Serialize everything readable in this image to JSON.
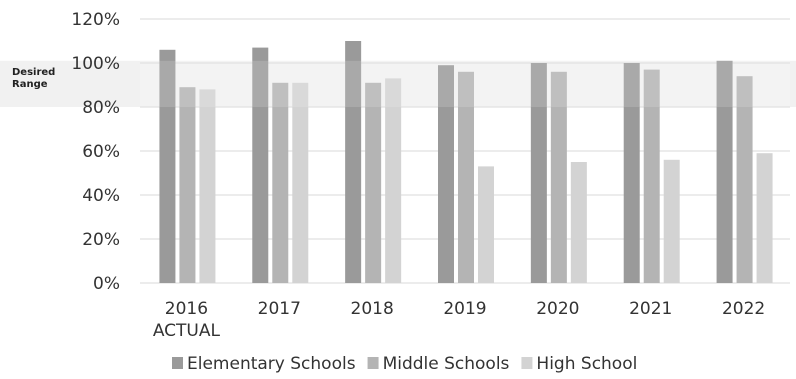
{
  "chart_data": {
    "type": "bar",
    "categories": [
      "2016 ACTUAL",
      "2017",
      "2018",
      "2019",
      "2020",
      "2021",
      "2022"
    ],
    "category_lines": [
      [
        "2016",
        "ACTUAL"
      ],
      [
        "2017"
      ],
      [
        "2018"
      ],
      [
        "2019"
      ],
      [
        "2020"
      ],
      [
        "2021"
      ],
      [
        "2022"
      ]
    ],
    "series": [
      {
        "name": "Elementary Schools",
        "color": "#9a9a9a",
        "values": [
          106,
          107,
          110,
          99,
          100,
          100,
          101
        ]
      },
      {
        "name": "Middle Schools",
        "color": "#b4b4b4",
        "values": [
          89,
          91,
          91,
          96,
          96,
          97,
          94
        ]
      },
      {
        "name": "High School",
        "color": "#d3d3d3",
        "values": [
          88,
          91,
          93,
          53,
          55,
          56,
          59
        ]
      }
    ],
    "y_ticks": [
      "0%",
      "20%",
      "40%",
      "60%",
      "80%",
      "100%",
      "120%"
    ],
    "y_tick_values": [
      0,
      20,
      40,
      60,
      80,
      100,
      120
    ],
    "ylim": [
      0,
      120
    ],
    "desired_range": {
      "label_lines": [
        "Desired",
        "Range"
      ],
      "from": 80,
      "to": 101,
      "color": "#f1f1f1"
    },
    "grid": true,
    "legend_position": "bottom"
  }
}
